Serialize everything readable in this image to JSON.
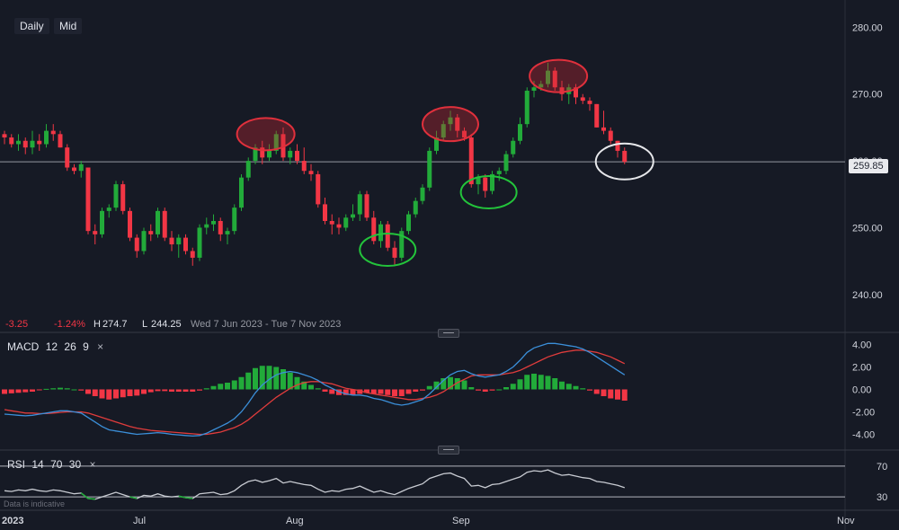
{
  "toolbar": {
    "interval": "Daily",
    "price_type": "Mid"
  },
  "stats": {
    "change": "-3.25",
    "change_pct": "-1.24%",
    "high_label": "H",
    "high": "274.7",
    "low_label": "L",
    "low": "244.25",
    "range": "Wed 7 Jun 2023 - Tue 7 Nov 2023"
  },
  "current_price": "259.85",
  "watermark": "Data is indicative",
  "x_axis": [
    "2023",
    "Jul",
    "Aug",
    "Sep",
    "Nov"
  ],
  "macd_label": {
    "name": "MACD",
    "fast": "12",
    "slow": "26",
    "signal": "9",
    "close": "×"
  },
  "rsi_label": {
    "name": "RSI",
    "period": "14",
    "upper": "70",
    "lower": "30",
    "close": "×"
  },
  "colors": {
    "up": "#22ab3a",
    "down": "#f23645",
    "macd_line": "#3b8fd9",
    "signal_line": "#e03c3c",
    "rsi_line": "#c8cbd2",
    "background": "#161a25"
  },
  "chart_data": [
    {
      "type": "candlestick",
      "yaxis_ticks": [
        240,
        250,
        260,
        270,
        280
      ],
      "ylim": [
        235,
        283
      ],
      "last_price": 259.85,
      "candles": [
        [
          264,
          264.5,
          262.5,
          263.5
        ],
        [
          263.5,
          264,
          262,
          262.5
        ],
        [
          262.5,
          264,
          261.5,
          263
        ],
        [
          263,
          263.5,
          261,
          262
        ],
        [
          262,
          264.5,
          261,
          263
        ],
        [
          263,
          264,
          261.5,
          262.5
        ],
        [
          262.5,
          265.5,
          262,
          264.5
        ],
        [
          264.5,
          265.5,
          263,
          264
        ],
        [
          264,
          264.5,
          262,
          262
        ],
        [
          262,
          262.5,
          258.5,
          259
        ],
        [
          259,
          259.5,
          258,
          258.5
        ],
        [
          258.5,
          260,
          257.5,
          259.5
        ],
        [
          259,
          259,
          249,
          249.5
        ],
        [
          249.5,
          250.5,
          247.5,
          249
        ],
        [
          249,
          253,
          248.5,
          252.5
        ],
        [
          252.5,
          253.5,
          251.5,
          253
        ],
        [
          253,
          257,
          252.5,
          256.5
        ],
        [
          256.5,
          257,
          252,
          252.5
        ],
        [
          252.5,
          253,
          248,
          248.5
        ],
        [
          248.5,
          249,
          245.5,
          246.5
        ],
        [
          246.5,
          250,
          246,
          249.5
        ],
        [
          249.5,
          250.5,
          248,
          249
        ],
        [
          249,
          253,
          248.5,
          252.5
        ],
        [
          252.5,
          253,
          248,
          248.5
        ],
        [
          248.5,
          249.5,
          246.5,
          247.5
        ],
        [
          247.5,
          249,
          245.5,
          248.5
        ],
        [
          248.5,
          249,
          246,
          246.5
        ],
        [
          246.5,
          247,
          244.3,
          245.5
        ],
        [
          245.5,
          250.5,
          245,
          250
        ],
        [
          250,
          251.5,
          249,
          250.5
        ],
        [
          250.5,
          252,
          249.5,
          251
        ],
        [
          251,
          251.5,
          248,
          249
        ],
        [
          249,
          250,
          247.5,
          249.5
        ],
        [
          249.5,
          253.5,
          249,
          253
        ],
        [
          253,
          258,
          252.5,
          257.5
        ],
        [
          257.5,
          260.5,
          257,
          260
        ],
        [
          260,
          262.5,
          259.5,
          262
        ],
        [
          262,
          263,
          259.5,
          260.5
        ],
        [
          260.5,
          262.5,
          260,
          261.5
        ],
        [
          261.5,
          264.5,
          261,
          264
        ],
        [
          264,
          265,
          260,
          260.5
        ],
        [
          260.5,
          262,
          259.5,
          261.5
        ],
        [
          261.5,
          262.5,
          259.5,
          260
        ],
        [
          260,
          262,
          258,
          258.5
        ],
        [
          258.5,
          259.5,
          257,
          258
        ],
        [
          258,
          258.5,
          253,
          253.5
        ],
        [
          253.5,
          254.5,
          250.5,
          251
        ],
        [
          251,
          252,
          249,
          250.5
        ],
        [
          250.5,
          251.5,
          249,
          250
        ],
        [
          250,
          252,
          249.5,
          251.5
        ],
        [
          251.5,
          253.5,
          251,
          252
        ],
        [
          252,
          255.5,
          251,
          255
        ],
        [
          255,
          255.5,
          251,
          251.5
        ],
        [
          251.5,
          252.5,
          247.5,
          248
        ],
        [
          248,
          251,
          247,
          250.5
        ],
        [
          250.5,
          251,
          246.5,
          247
        ],
        [
          247,
          248,
          244.5,
          245.5
        ],
        [
          245.5,
          250,
          245,
          249.5
        ],
        [
          249.5,
          252.5,
          249,
          252
        ],
        [
          252,
          254.5,
          251.5,
          254
        ],
        [
          254,
          256.5,
          253.5,
          256
        ],
        [
          256,
          262,
          255.5,
          261.5
        ],
        [
          261.5,
          264.5,
          261,
          263.5
        ],
        [
          263.5,
          266,
          263,
          265.5
        ],
        [
          265.5,
          267.5,
          264.5,
          266.5
        ],
        [
          266.5,
          267,
          263.5,
          264.5
        ],
        [
          264.5,
          265,
          263,
          263.5
        ],
        [
          263.5,
          264,
          256,
          256.5
        ],
        [
          256.5,
          258,
          255,
          257.5
        ],
        [
          257.5,
          258,
          254.5,
          255.5
        ],
        [
          255.5,
          258.5,
          255,
          258
        ],
        [
          258,
          259,
          257,
          258.5
        ],
        [
          258.5,
          261.5,
          258,
          261
        ],
        [
          261,
          263.5,
          260.5,
          263
        ],
        [
          263,
          266.5,
          262.5,
          265.5
        ],
        [
          265.5,
          271,
          265,
          270.5
        ],
        [
          270.5,
          272,
          269.5,
          271
        ],
        [
          271,
          272,
          270.5,
          271.5
        ],
        [
          271.5,
          274.7,
          271,
          273.5
        ],
        [
          273.5,
          274,
          270.5,
          271
        ],
        [
          271,
          272,
          269,
          270
        ],
        [
          270,
          271.5,
          268.5,
          271
        ],
        [
          271,
          271.5,
          268.5,
          269.5
        ],
        [
          269.5,
          270,
          268.5,
          269
        ],
        [
          269,
          269.5,
          267.5,
          268.5
        ],
        [
          268.5,
          268.5,
          265,
          265
        ],
        [
          265,
          267.5,
          264,
          264.5
        ],
        [
          264.5,
          265,
          262.5,
          263
        ],
        [
          263,
          263,
          260.5,
          261.5
        ],
        [
          261.5,
          262,
          259.5,
          259.85
        ]
      ]
    },
    {
      "type": "macd",
      "params": [
        12,
        26,
        9
      ],
      "yaxis_ticks": [
        4.0,
        2.0,
        0.0,
        -2.0,
        -4.0
      ],
      "ylim": [
        -5,
        4.6
      ],
      "macd": [
        -2.2,
        -2.25,
        -2.3,
        -2.35,
        -2.3,
        -2.2,
        -2.1,
        -2.0,
        -1.9,
        -1.9,
        -2.0,
        -2.1,
        -2.5,
        -2.9,
        -3.3,
        -3.6,
        -3.7,
        -3.8,
        -3.9,
        -4.0,
        -3.95,
        -3.9,
        -3.85,
        -3.9,
        -4.0,
        -4.05,
        -4.1,
        -4.15,
        -4.1,
        -3.9,
        -3.6,
        -3.3,
        -3.0,
        -2.6,
        -2.0,
        -1.2,
        -0.3,
        0.4,
        0.9,
        1.3,
        1.5,
        1.6,
        1.5,
        1.3,
        1.1,
        0.8,
        0.4,
        0.1,
        -0.2,
        -0.4,
        -0.5,
        -0.5,
        -0.6,
        -0.8,
        -0.9,
        -1.1,
        -1.3,
        -1.4,
        -1.3,
        -1.1,
        -0.9,
        -0.4,
        0.2,
        0.8,
        1.3,
        1.6,
        1.7,
        1.4,
        1.2,
        1.1,
        1.2,
        1.3,
        1.6,
        2.0,
        2.6,
        3.3,
        3.7,
        3.9,
        4.1,
        4.1,
        4.0,
        3.9,
        3.8,
        3.6,
        3.3,
        2.9,
        2.5,
        2.1,
        1.7,
        1.3
      ],
      "signal": [
        -1.8,
        -1.9,
        -2.0,
        -2.1,
        -2.1,
        -2.15,
        -2.15,
        -2.1,
        -2.05,
        -2.0,
        -2.0,
        -2.0,
        -2.1,
        -2.3,
        -2.5,
        -2.7,
        -2.9,
        -3.1,
        -3.3,
        -3.45,
        -3.55,
        -3.65,
        -3.7,
        -3.75,
        -3.8,
        -3.85,
        -3.9,
        -3.95,
        -4.0,
        -4.0,
        -3.9,
        -3.8,
        -3.6,
        -3.4,
        -3.1,
        -2.7,
        -2.2,
        -1.7,
        -1.2,
        -0.7,
        -0.3,
        0.1,
        0.4,
        0.6,
        0.7,
        0.7,
        0.6,
        0.5,
        0.3,
        0.1,
        0.0,
        -0.1,
        -0.3,
        -0.4,
        -0.5,
        -0.6,
        -0.7,
        -0.8,
        -0.9,
        -0.9,
        -0.8,
        -0.7,
        -0.5,
        -0.2,
        0.2,
        0.6,
        0.9,
        1.2,
        1.3,
        1.3,
        1.3,
        1.3,
        1.4,
        1.5,
        1.7,
        2.0,
        2.3,
        2.6,
        2.9,
        3.1,
        3.3,
        3.4,
        3.5,
        3.5,
        3.4,
        3.3,
        3.1,
        2.9,
        2.6,
        2.3
      ],
      "histogram": [
        -0.4,
        -0.35,
        -0.3,
        -0.25,
        -0.2,
        -0.05,
        0.05,
        0.1,
        0.15,
        0.1,
        0.0,
        -0.1,
        -0.4,
        -0.6,
        -0.8,
        -0.9,
        -0.8,
        -0.7,
        -0.6,
        -0.55,
        -0.4,
        -0.25,
        -0.15,
        -0.15,
        -0.2,
        -0.2,
        -0.2,
        -0.2,
        -0.1,
        0.1,
        0.3,
        0.5,
        0.6,
        0.8,
        1.1,
        1.5,
        1.9,
        2.1,
        2.1,
        2.0,
        1.8,
        1.5,
        1.1,
        0.7,
        0.4,
        0.1,
        -0.2,
        -0.4,
        -0.5,
        -0.5,
        -0.5,
        -0.4,
        -0.3,
        -0.4,
        -0.4,
        -0.5,
        -0.6,
        -0.6,
        -0.4,
        -0.2,
        -0.1,
        0.3,
        0.7,
        1.0,
        1.1,
        1.0,
        0.8,
        0.2,
        -0.1,
        -0.2,
        -0.1,
        0.0,
        0.2,
        0.5,
        0.9,
        1.3,
        1.4,
        1.3,
        1.2,
        1.0,
        0.7,
        0.5,
        0.3,
        0.1,
        -0.1,
        -0.4,
        -0.6,
        -0.8,
        -0.9,
        -1.0
      ]
    },
    {
      "type": "rsi",
      "params": [
        14,
        70,
        30
      ],
      "yaxis_ticks": [
        70,
        30
      ],
      "ylim": [
        15,
        85
      ],
      "values": [
        38,
        37,
        39,
        38,
        40,
        38,
        37,
        39,
        38,
        36,
        34,
        35,
        28,
        27,
        30,
        33,
        36,
        33,
        30,
        28,
        32,
        31,
        34,
        31,
        30,
        31,
        29,
        28,
        34,
        35,
        36,
        33,
        34,
        38,
        45,
        50,
        52,
        49,
        51,
        54,
        48,
        50,
        48,
        46,
        45,
        40,
        36,
        38,
        37,
        40,
        41,
        44,
        40,
        36,
        38,
        35,
        33,
        37,
        41,
        44,
        47,
        54,
        57,
        60,
        61,
        57,
        54,
        44,
        45,
        42,
        46,
        47,
        50,
        53,
        56,
        62,
        64,
        63,
        65,
        61,
        58,
        59,
        57,
        55,
        54,
        50,
        49,
        47,
        45,
        42
      ]
    }
  ]
}
